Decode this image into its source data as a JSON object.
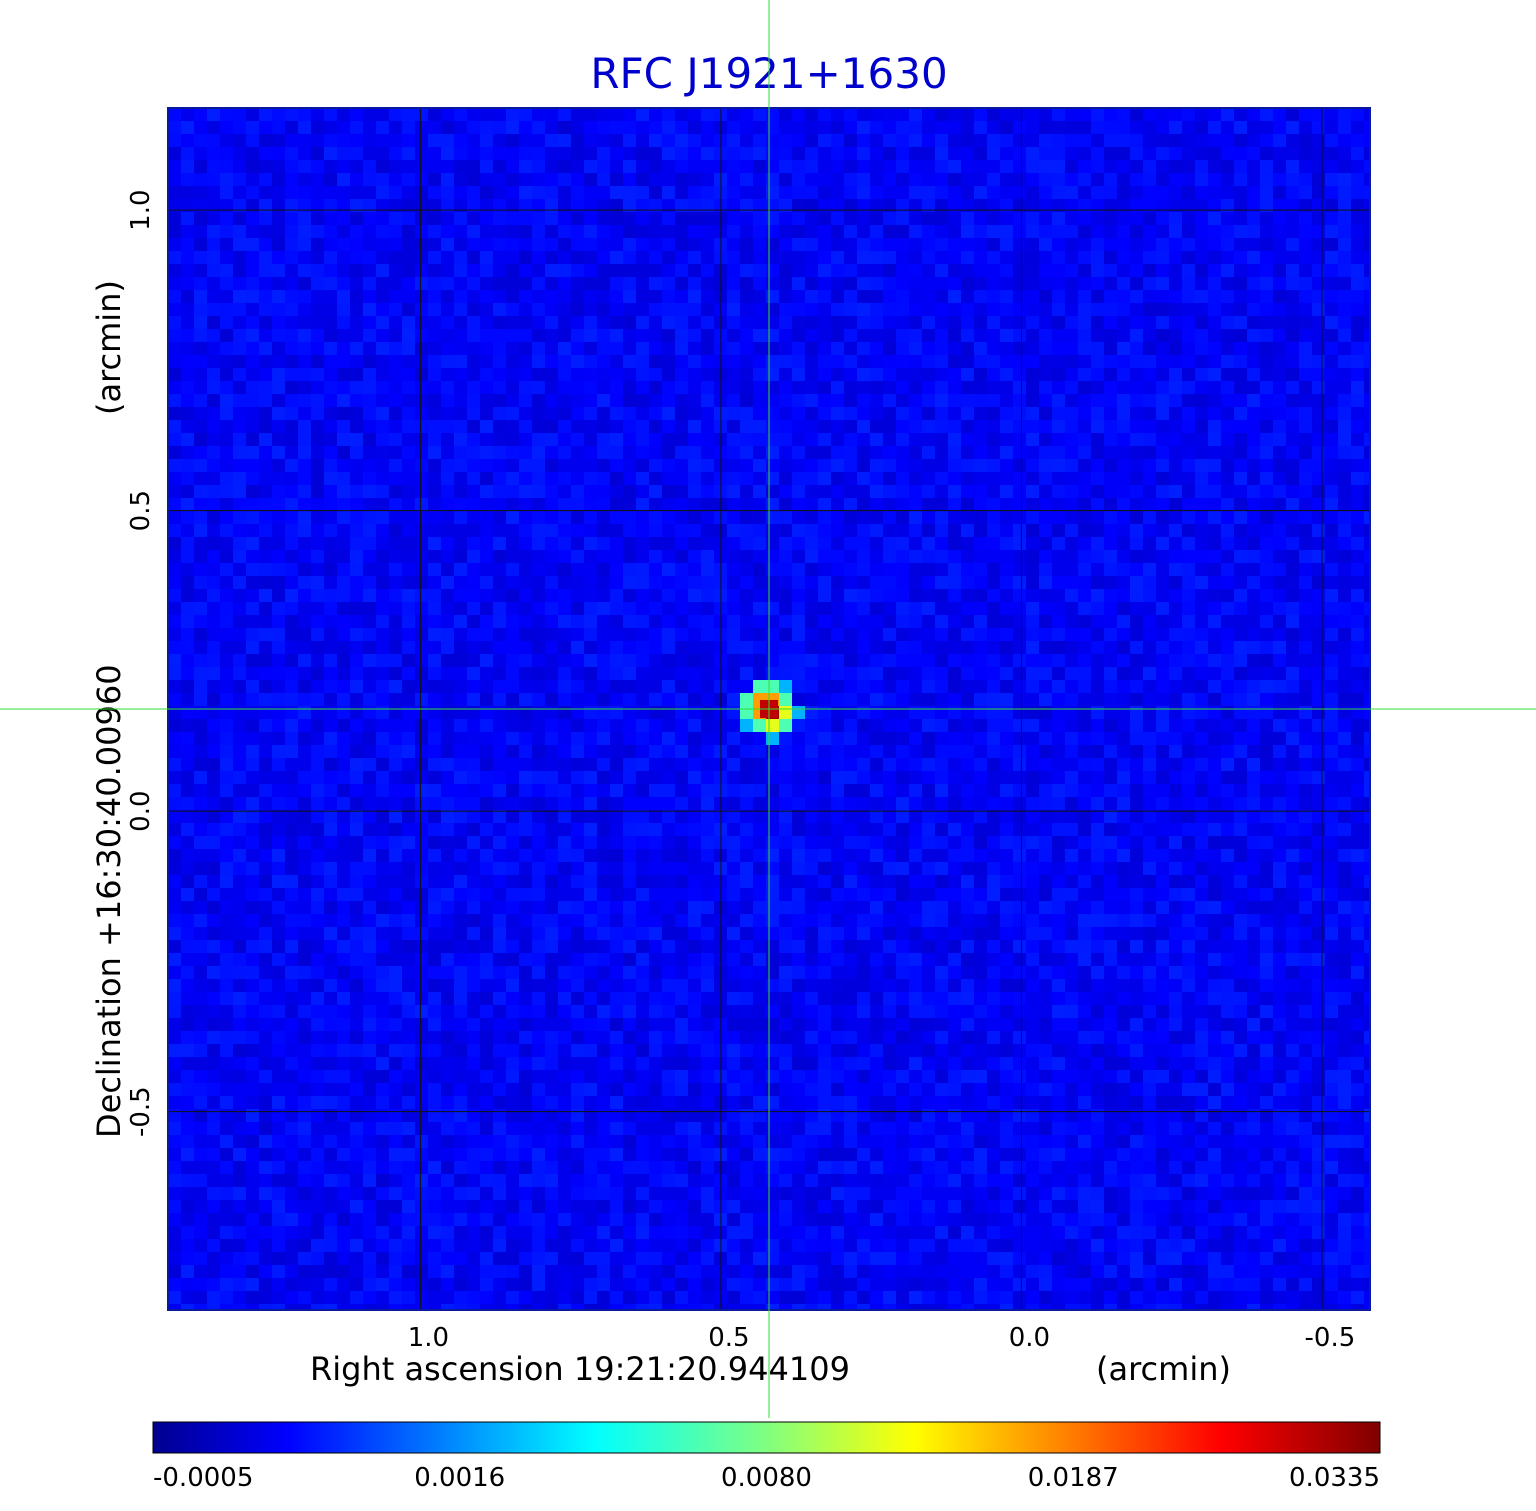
{
  "chart_data": {
    "type": "heatmap",
    "title": "RFC J1921+1630",
    "xlabel": "Right ascension  19:21:20.944109",
    "xunit": "(arcmin)",
    "ylabel": "Declination  +16:30:40.00960",
    "yunit": "(arcmin)",
    "x_range": [
      1.42,
      -0.58
    ],
    "y_range": [
      -0.83,
      1.17
    ],
    "x_ticks": [
      {
        "value": 1.0,
        "label": "1.0"
      },
      {
        "value": 0.5,
        "label": "0.5"
      },
      {
        "value": 0.0,
        "label": "0.0"
      },
      {
        "value": -0.5,
        "label": "-0.5"
      }
    ],
    "y_ticks": [
      {
        "value": 1.0,
        "label": "1.0"
      },
      {
        "value": 0.5,
        "label": "0.5"
      },
      {
        "value": 0.0,
        "label": "0.0"
      },
      {
        "value": -0.5,
        "label": "-0.5"
      }
    ],
    "grid": true,
    "colormap": "jet",
    "colorbar": {
      "position": "bottom",
      "min": -0.0005,
      "max": 0.0335,
      "ticks": [
        "-0.0005",
        "0.0016",
        "0.0080",
        "0.0187",
        "0.0335"
      ]
    },
    "source": {
      "x": 0.42,
      "y": 0.17,
      "peak": 0.0335
    },
    "crosshair": {
      "x": 0.42,
      "y": 0.17,
      "color": "#33dd33"
    },
    "background_level": 0.0002
  }
}
